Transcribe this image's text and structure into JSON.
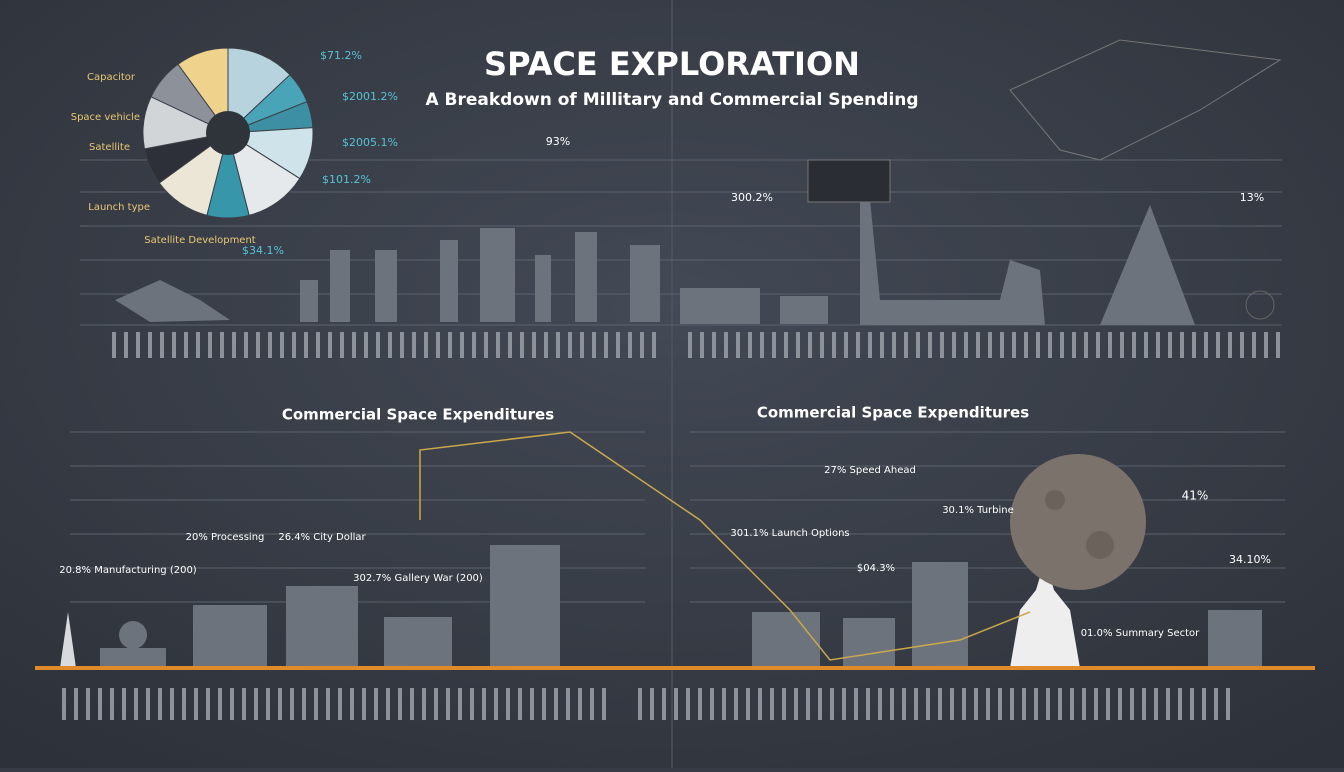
{
  "header": {
    "title": "SPACE EXPLORATION",
    "subtitle": "A Breakdown of Millitary and Commercial Spending"
  },
  "pie": {
    "left_labels": [
      "Capacitor",
      "Space vehicle",
      "Satellite",
      "Launch type",
      "Satellite Development"
    ],
    "right_labels": [
      "$71.2%",
      "$2001.2%",
      "$2005.1%",
      "$101.2%",
      "$34.1%"
    ]
  },
  "top_callouts": [
    "93%",
    "300.2%",
    "13%"
  ],
  "sections": [
    {
      "title": "Commercial Space Expenditures",
      "callouts": [
        "20.8% Manufacturing (200)",
        "20% Processing",
        "26.4% City Dollar",
        "302.7% Gallery War (200)"
      ]
    },
    {
      "title": "Commercial Space Expenditures",
      "callouts": [
        "301.1% Launch Options",
        "27% Speed Ahead",
        "$04.3%",
        "30.1% Turbine",
        "41%",
        "34.10%",
        "01.0% Summary Sector"
      ]
    }
  ]
}
